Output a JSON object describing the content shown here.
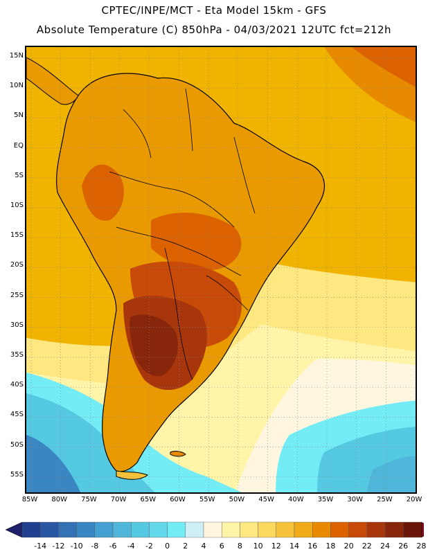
{
  "header": {
    "line1": "CPTEC/INPE/MCT -  Eta Model 15km - GFS",
    "line2": "Absolute Temperature (C) 850hPa - 04/03/2021 12UTC fct=212h"
  },
  "map": {
    "lat_labels": [
      "15N",
      "10N",
      "5N",
      "EQ",
      "5S",
      "10S",
      "15S",
      "20S",
      "25S",
      "30S",
      "35S",
      "40S",
      "45S",
      "50S",
      "55S"
    ],
    "lon_labels": [
      "85W",
      "80W",
      "75W",
      "70W",
      "65W",
      "60W",
      "55W",
      "50W",
      "45W",
      "40W",
      "35W",
      "30W",
      "25W",
      "20W"
    ],
    "colors": {
      "ocean_warm": "#f0b400",
      "land_base": "#e89a00",
      "hot_core": "#b8400c",
      "hottest": "#8c2a08",
      "cool_ocean": "#4cc8dc",
      "cold_ocean": "#2f8fc4",
      "coastline": "#000000"
    }
  },
  "colorbar": {
    "labels": [
      "-14",
      "-12",
      "-10",
      "-8",
      "-6",
      "-4",
      "-2",
      "0",
      "2",
      "4",
      "6",
      "8",
      "10",
      "12",
      "14",
      "16",
      "18",
      "20",
      "22",
      "24",
      "26",
      "28"
    ],
    "colors": [
      "#1f3f8f",
      "#2a57a4",
      "#3370b4",
      "#3a86c2",
      "#43a0d0",
      "#4fb6da",
      "#55c8e2",
      "#63d8ea",
      "#73ecf6",
      "#cfeff7",
      "#fff6e0",
      "#fff4a8",
      "#ffe882",
      "#fbd85e",
      "#f6c23a",
      "#f0aa18",
      "#e88a00",
      "#dc6200",
      "#c84a08",
      "#a8360c",
      "#88260c",
      "#6a1608"
    ],
    "end_low_color": "#1f1f6a",
    "end_high_color": "#7a0a18"
  }
}
